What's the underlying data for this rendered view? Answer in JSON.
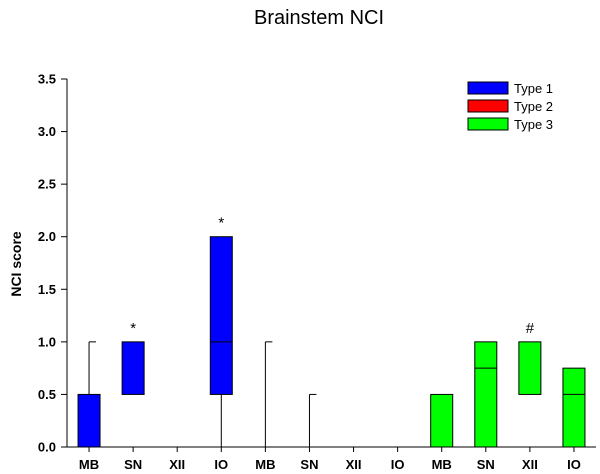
{
  "chart_data": {
    "type": "box",
    "title": "Brainstem NCI",
    "ylabel": "NCI score",
    "xlabel": "",
    "ylim": [
      0,
      3.5
    ],
    "yticks": [
      "0.0",
      "0.5",
      "1.0",
      "1.5",
      "2.0",
      "2.5",
      "3.0",
      "3.5"
    ],
    "categories": [
      "MB",
      "SN",
      "XII",
      "IO",
      "MB",
      "SN",
      "XII",
      "IO",
      "MB",
      "SN",
      "XII",
      "IO"
    ],
    "legend": {
      "placement": "top-right"
    },
    "series": [
      {
        "name": "Type 1",
        "color": "#0000ff",
        "boxes": [
          {
            "category_index": 0,
            "min": 0,
            "q1": 0,
            "median": 0,
            "q3": 0.5,
            "max": 1.0
          },
          {
            "category_index": 1,
            "min": 0.5,
            "q1": 0.5,
            "median": 0.5,
            "q3": 1.0,
            "max": 1.0
          },
          {
            "category_index": 2,
            "min": 0,
            "q1": 0,
            "median": 0,
            "q3": 0,
            "max": 0
          },
          {
            "category_index": 3,
            "min": 0,
            "q1": 0.5,
            "median": 1.0,
            "q3": 2.0,
            "max": 2.0
          }
        ]
      },
      {
        "name": "Type 2",
        "color": "#ff0000",
        "boxes": [
          {
            "category_index": 4,
            "min": 0,
            "q1": 0,
            "median": 0,
            "q3": 0,
            "max": 1.0
          },
          {
            "category_index": 5,
            "min": 0,
            "q1": 0,
            "median": 0,
            "q3": 0,
            "max": 0.5
          },
          {
            "category_index": 6,
            "min": 0,
            "q1": 0,
            "median": 0,
            "q3": 0,
            "max": 0
          },
          {
            "category_index": 7,
            "min": 0,
            "q1": 0,
            "median": 0,
            "q3": 0,
            "max": 0
          }
        ]
      },
      {
        "name": "Type 3",
        "color": "#00ff00",
        "boxes": [
          {
            "category_index": 8,
            "min": 0,
            "q1": 0,
            "median": 0,
            "q3": 0.5,
            "max": 0.5
          },
          {
            "category_index": 9,
            "min": 0,
            "q1": 0,
            "median": 0.75,
            "q3": 1.0,
            "max": 1.0
          },
          {
            "category_index": 10,
            "min": 0.5,
            "q1": 0.5,
            "median": 0.5,
            "q3": 1.0,
            "max": 1.0
          },
          {
            "category_index": 11,
            "min": 0,
            "q1": 0,
            "median": 0.5,
            "q3": 0.75,
            "max": 0.75
          }
        ]
      }
    ],
    "annotations": [
      {
        "text": "*",
        "category_index": 1,
        "y": 1.0
      },
      {
        "text": "*",
        "category_index": 3,
        "y": 2.0
      },
      {
        "text": "#",
        "category_index": 10,
        "y": 1.0
      }
    ]
  }
}
